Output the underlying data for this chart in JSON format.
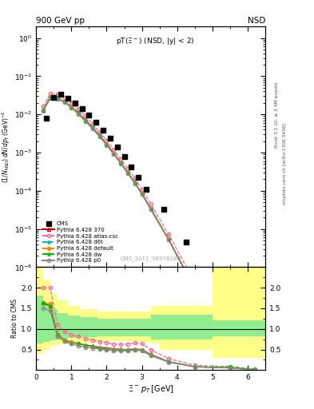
{
  "title_top_left": "900 GeV pp",
  "title_top_right": "NSD",
  "plot_title": "pT(Ξ⁻) (NSD, |y| < 2)",
  "watermark": "CMS_2011_S8978280",
  "right_label1": "Rivet 3.1.10, ≥ 3.4M events",
  "right_label2": "mcplots.cern.ch [arXiv:1306.3436]",
  "cms_pt": [
    0.3,
    0.5,
    0.7,
    0.9,
    1.1,
    1.3,
    1.5,
    1.7,
    1.9,
    2.1,
    2.3,
    2.5,
    2.7,
    2.9,
    3.125,
    3.625,
    4.25,
    5.25
  ],
  "cms_val": [
    0.008,
    0.028,
    0.033,
    0.027,
    0.02,
    0.014,
    0.0095,
    0.0062,
    0.0039,
    0.0024,
    0.0014,
    0.00078,
    0.00042,
    0.00022,
    0.00011,
    3.2e-05,
    4.5e-06,
    1.8e-07
  ],
  "py370_pt": [
    0.2,
    0.4,
    0.6,
    0.8,
    1.0,
    1.2,
    1.4,
    1.6,
    1.8,
    2.0,
    2.2,
    2.4,
    2.6,
    2.8,
    3.0,
    3.25,
    3.75,
    4.5,
    5.5,
    6.2
  ],
  "py370_val": [
    0.013,
    0.028,
    0.027,
    0.022,
    0.016,
    0.011,
    0.0072,
    0.0046,
    0.0028,
    0.0017,
    0.00098,
    0.00055,
    0.0003,
    0.000165,
    8.5e-05,
    3.5e-05,
    5.5e-06,
    2.8e-07,
    1e-08,
    2e-09
  ],
  "pyatlas_pt": [
    0.2,
    0.4,
    0.6,
    0.8,
    1.0,
    1.2,
    1.4,
    1.6,
    1.8,
    2.0,
    2.2,
    2.4,
    2.6,
    2.8,
    3.0,
    3.25,
    3.75,
    4.5,
    5.5,
    6.2
  ],
  "pyatlas_val": [
    0.016,
    0.036,
    0.034,
    0.028,
    0.02,
    0.014,
    0.009,
    0.0057,
    0.0035,
    0.0021,
    0.0012,
    0.00068,
    0.00038,
    0.00021,
    0.00011,
    4.5e-05,
    7.5e-06,
    4e-07,
    1.5e-08,
    3e-09
  ],
  "pyd6t_pt": [
    0.2,
    0.4,
    0.6,
    0.8,
    1.0,
    1.2,
    1.4,
    1.6,
    1.8,
    2.0,
    2.2,
    2.4,
    2.6,
    2.8,
    3.0,
    3.25,
    3.75,
    4.5,
    5.5,
    6.2
  ],
  "pyd6t_val": [
    0.013,
    0.029,
    0.027,
    0.022,
    0.016,
    0.011,
    0.007,
    0.0044,
    0.0027,
    0.0016,
    0.00095,
    0.00054,
    0.0003,
    0.00016,
    8.5e-05,
    3.4e-05,
    5.5e-06,
    2.8e-07,
    1e-08,
    2e-09
  ],
  "pydefault_pt": [
    0.2,
    0.4,
    0.6,
    0.8,
    1.0,
    1.2,
    1.4,
    1.6,
    1.8,
    2.0,
    2.2,
    2.4,
    2.6,
    2.8,
    3.0,
    3.25,
    3.75,
    4.5,
    5.5,
    6.2
  ],
  "pydefault_val": [
    0.013,
    0.029,
    0.027,
    0.022,
    0.016,
    0.011,
    0.007,
    0.0044,
    0.0027,
    0.0016,
    0.00095,
    0.00054,
    0.0003,
    0.00016,
    8.5e-05,
    3.4e-05,
    5.5e-06,
    2.8e-07,
    1e-08,
    2e-09
  ],
  "pydw_pt": [
    0.2,
    0.4,
    0.6,
    0.8,
    1.0,
    1.2,
    1.4,
    1.6,
    1.8,
    2.0,
    2.2,
    2.4,
    2.6,
    2.8,
    3.0,
    3.25,
    3.75,
    4.5,
    5.5,
    6.2
  ],
  "pydw_val": [
    0.013,
    0.028,
    0.026,
    0.021,
    0.015,
    0.011,
    0.007,
    0.0044,
    0.0027,
    0.0016,
    0.00093,
    0.00053,
    0.00029,
    0.00016,
    8.3e-05,
    3.3e-05,
    5.3e-06,
    2.7e-07,
    1.5e-08,
    4e-09
  ],
  "pyp0_pt": [
    0.2,
    0.4,
    0.6,
    0.8,
    1.0,
    1.2,
    1.4,
    1.6,
    1.8,
    2.0,
    2.2,
    2.4,
    2.6,
    2.8,
    3.0,
    3.25,
    3.75,
    4.5,
    5.5,
    6.2
  ],
  "pyp0_val": [
    0.012,
    0.026,
    0.025,
    0.021,
    0.015,
    0.01,
    0.0065,
    0.0042,
    0.0026,
    0.00155,
    0.0009,
    0.00051,
    0.00028,
    0.000155,
    8e-05,
    3.2e-05,
    5.2e-06,
    2.6e-07,
    9.5e-09,
    1.5e-09
  ],
  "band_outer_edges": [
    0.0,
    0.2,
    0.4,
    0.6,
    0.9,
    1.25,
    1.75,
    2.25,
    2.75,
    3.25,
    3.5,
    4.0,
    5.0,
    6.5
  ],
  "band_outer_lo": [
    0.4,
    0.5,
    0.58,
    0.62,
    0.65,
    0.67,
    0.7,
    0.7,
    0.69,
    0.65,
    0.5,
    0.5,
    0.3,
    0.3
  ],
  "band_outer_hi": [
    2.5,
    2.2,
    1.85,
    1.7,
    1.55,
    1.48,
    1.43,
    1.42,
    1.42,
    1.55,
    1.55,
    1.55,
    2.5,
    2.5
  ],
  "band_inner_edges": [
    0.0,
    0.2,
    0.4,
    0.6,
    0.9,
    1.25,
    1.75,
    2.25,
    2.75,
    3.25,
    3.5,
    4.0,
    5.0,
    6.5
  ],
  "band_inner_lo": [
    0.65,
    0.68,
    0.72,
    0.75,
    0.78,
    0.8,
    0.82,
    0.83,
    0.83,
    0.75,
    0.75,
    0.75,
    0.82,
    0.82
  ],
  "band_inner_hi": [
    1.8,
    1.6,
    1.48,
    1.38,
    1.32,
    1.28,
    1.25,
    1.24,
    1.24,
    1.35,
    1.35,
    1.35,
    1.2,
    1.2
  ],
  "color_370": "#cc0000",
  "color_atlas": "#ff6699",
  "color_d6t": "#00bbbb",
  "color_default": "#ff8800",
  "color_dw": "#00bb00",
  "color_p0": "#888888",
  "color_cms": "#000000",
  "color_band_inner": "#90ee90",
  "color_band_outer": "#ffff88",
  "xlim": [
    0.0,
    6.5
  ],
  "ylim_main": [
    1e-06,
    2.0
  ],
  "ylim_ratio": [
    0.0,
    2.5
  ],
  "ratio_yticks": [
    0.5,
    1.0,
    1.5,
    2.0
  ]
}
